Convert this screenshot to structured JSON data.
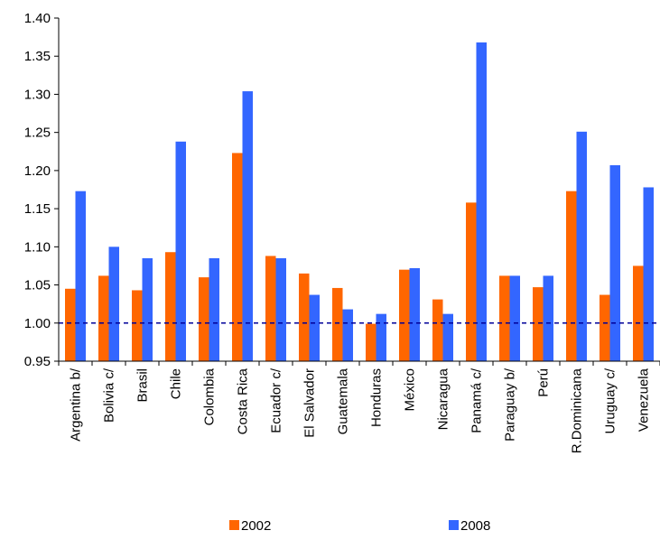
{
  "chart_data": {
    "type": "bar",
    "categories": [
      "Argentina b/",
      "Bolivia c/",
      "Brasil",
      "Chile",
      "Colombia",
      "Costa Rica",
      "Ecuador c/",
      "El Salvador",
      "Guatemala",
      "Honduras",
      "México",
      "Nicaragua",
      "Panamá c/",
      "Paraguay b/",
      "Perú",
      "R.Dominicana",
      "Uruguay c/",
      "Venezuela"
    ],
    "series": [
      {
        "name": "2002",
        "color": "#ff6600",
        "values": [
          1.045,
          1.062,
          1.043,
          1.093,
          1.06,
          1.223,
          1.088,
          1.065,
          1.046,
          0.999,
          1.07,
          1.031,
          1.158,
          1.062,
          1.047,
          1.173,
          1.037,
          1.075
        ]
      },
      {
        "name": "2008",
        "color": "#3366ff",
        "values": [
          1.173,
          1.1,
          1.085,
          1.238,
          1.085,
          1.304,
          1.085,
          1.037,
          1.018,
          1.012,
          1.072,
          1.012,
          1.368,
          1.062,
          1.062,
          1.251,
          1.207,
          1.178
        ]
      }
    ],
    "ylim": [
      0.95,
      1.4
    ],
    "yticks": [
      "0.95",
      "1.00",
      "1.05",
      "1.10",
      "1.15",
      "1.20",
      "1.25",
      "1.30",
      "1.35",
      "1.40"
    ],
    "reference_line": 1.0,
    "reference_line_color": "#000099",
    "grid": false,
    "legend_position": "bottom"
  }
}
